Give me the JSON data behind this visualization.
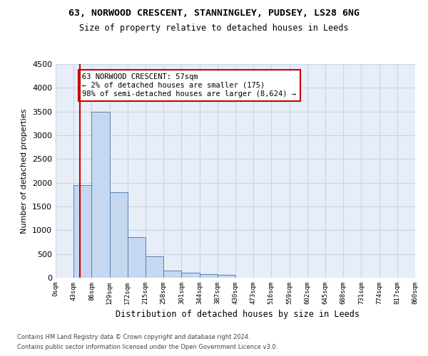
{
  "title": "63, NORWOOD CRESCENT, STANNINGLEY, PUDSEY, LS28 6NG",
  "subtitle": "Size of property relative to detached houses in Leeds",
  "xlabel": "Distribution of detached houses by size in Leeds",
  "ylabel": "Number of detached properties",
  "bar_values": [
    0,
    1950,
    3500,
    1800,
    850,
    450,
    150,
    100,
    70,
    60,
    0,
    0,
    0,
    0,
    0,
    0,
    0,
    0,
    0,
    0
  ],
  "bar_labels": [
    "0sqm",
    "43sqm",
    "86sqm",
    "129sqm",
    "172sqm",
    "215sqm",
    "258sqm",
    "301sqm",
    "344sqm",
    "387sqm",
    "430sqm",
    "473sqm",
    "516sqm",
    "559sqm",
    "602sqm",
    "645sqm",
    "688sqm",
    "731sqm",
    "774sqm",
    "817sqm",
    "860sqm"
  ],
  "bar_color": "#c5d8f0",
  "bar_edge_color": "#5580b0",
  "ylim": [
    0,
    4500
  ],
  "yticks": [
    0,
    500,
    1000,
    1500,
    2000,
    2500,
    3000,
    3500,
    4000,
    4500
  ],
  "property_line_x": 1.33,
  "annotation_text": "63 NORWOOD CRESCENT: 57sqm\n← 2% of detached houses are smaller (175)\n98% of semi-detached houses are larger (8,624) →",
  "annotation_box_color": "#ffffff",
  "annotation_box_edge": "#cc0000",
  "property_line_color": "#cc0000",
  "grid_color": "#c8d4e8",
  "bg_color": "#e8eef8",
  "footer1": "Contains HM Land Registry data © Crown copyright and database right 2024.",
  "footer2": "Contains public sector information licensed under the Open Government Licence v3.0."
}
